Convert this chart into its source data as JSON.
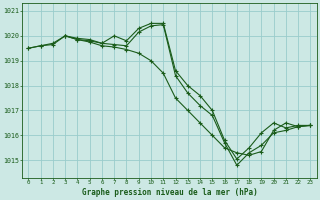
{
  "title": "Graphe pression niveau de la mer (hPa)",
  "bg_color": "#cce8e4",
  "grid_color": "#99cccc",
  "line_color": "#1a5c1a",
  "x_ticks": [
    0,
    1,
    2,
    3,
    4,
    5,
    6,
    7,
    8,
    9,
    10,
    11,
    12,
    13,
    14,
    15,
    16,
    17,
    18,
    19,
    20,
    21,
    22,
    23
  ],
  "xlim": [
    -0.5,
    23.5
  ],
  "ylim": [
    1014.3,
    1021.3
  ],
  "yticks": [
    1015,
    1016,
    1017,
    1018,
    1019,
    1020,
    1021
  ],
  "series1_x": [
    0,
    1,
    2,
    3,
    4,
    5,
    6,
    7,
    8,
    9,
    10,
    11,
    12,
    13,
    14,
    15,
    16,
    17,
    18,
    19,
    20,
    21,
    22,
    23
  ],
  "series1_y": [
    1019.5,
    1019.6,
    1019.7,
    1020.0,
    1019.85,
    1019.8,
    1019.7,
    1020.0,
    1019.8,
    1020.3,
    1020.5,
    1020.5,
    1018.6,
    1018.0,
    1017.6,
    1017.0,
    1015.8,
    1015.05,
    1015.5,
    1016.1,
    1016.5,
    1016.3,
    1016.4,
    1016.4
  ],
  "series2_x": [
    0,
    1,
    2,
    3,
    4,
    5,
    6,
    7,
    8,
    9,
    10,
    11,
    12,
    13,
    14,
    15,
    16,
    17,
    18,
    19,
    20,
    21,
    22,
    23
  ],
  "series2_y": [
    1019.5,
    1019.6,
    1019.65,
    1020.0,
    1019.9,
    1019.85,
    1019.7,
    1019.65,
    1019.6,
    1020.15,
    1020.4,
    1020.45,
    1018.4,
    1017.7,
    1017.2,
    1016.8,
    1015.7,
    1014.8,
    1015.3,
    1015.6,
    1016.1,
    1016.2,
    1016.35,
    1016.4
  ],
  "series3_x": [
    3,
    4,
    5,
    6,
    7,
    8,
    9,
    10,
    11,
    12,
    13,
    14,
    15,
    16,
    17,
    18,
    19,
    20,
    21,
    22,
    23
  ],
  "series3_y": [
    1020.0,
    1019.85,
    1019.75,
    1019.6,
    1019.55,
    1019.45,
    1019.3,
    1019.0,
    1018.5,
    1017.5,
    1017.0,
    1016.5,
    1016.0,
    1015.5,
    1015.3,
    1015.2,
    1015.35,
    1016.2,
    1016.5,
    1016.35,
    1016.4
  ]
}
